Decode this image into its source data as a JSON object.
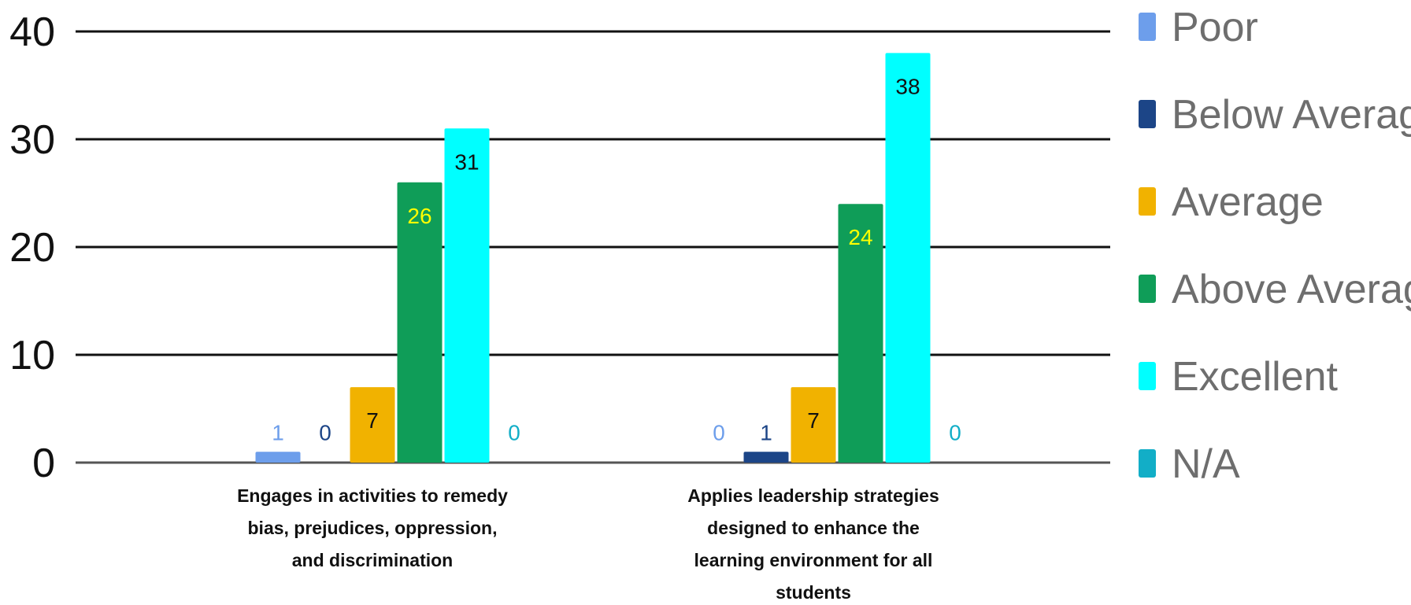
{
  "chart_data": {
    "type": "bar",
    "categories": [
      [
        "Engages in activities to remedy",
        "bias, prejudices, oppression,",
        "and discrimination"
      ],
      [
        "Applies leadership strategies",
        "designed to enhance the",
        "learning environment for all",
        "students"
      ]
    ],
    "series": [
      {
        "name": "Poor",
        "values": [
          1,
          0
        ],
        "color": "#6d9eeb",
        "label_color": "#6d9eeb"
      },
      {
        "name": "Below Average",
        "values": [
          0,
          1
        ],
        "color": "#1c4587",
        "label_color": "#1c4587"
      },
      {
        "name": "Average",
        "values": [
          7,
          7
        ],
        "color": "#f1b200",
        "label_color": "#111111"
      },
      {
        "name": "Above Average",
        "values": [
          26,
          24
        ],
        "color": "#0f9d58",
        "label_color": "#ffff00"
      },
      {
        "name": "Excellent",
        "values": [
          31,
          38
        ],
        "color": "#00ffff",
        "label_color": "#111111"
      },
      {
        "name": "N/A",
        "values": [
          0,
          0
        ],
        "color": "#12aec7",
        "label_color": "#12aec7"
      }
    ],
    "yticks": [
      0,
      10,
      20,
      30,
      40
    ],
    "ylim": [
      0,
      40
    ],
    "grid": true,
    "legend_position": "right"
  }
}
